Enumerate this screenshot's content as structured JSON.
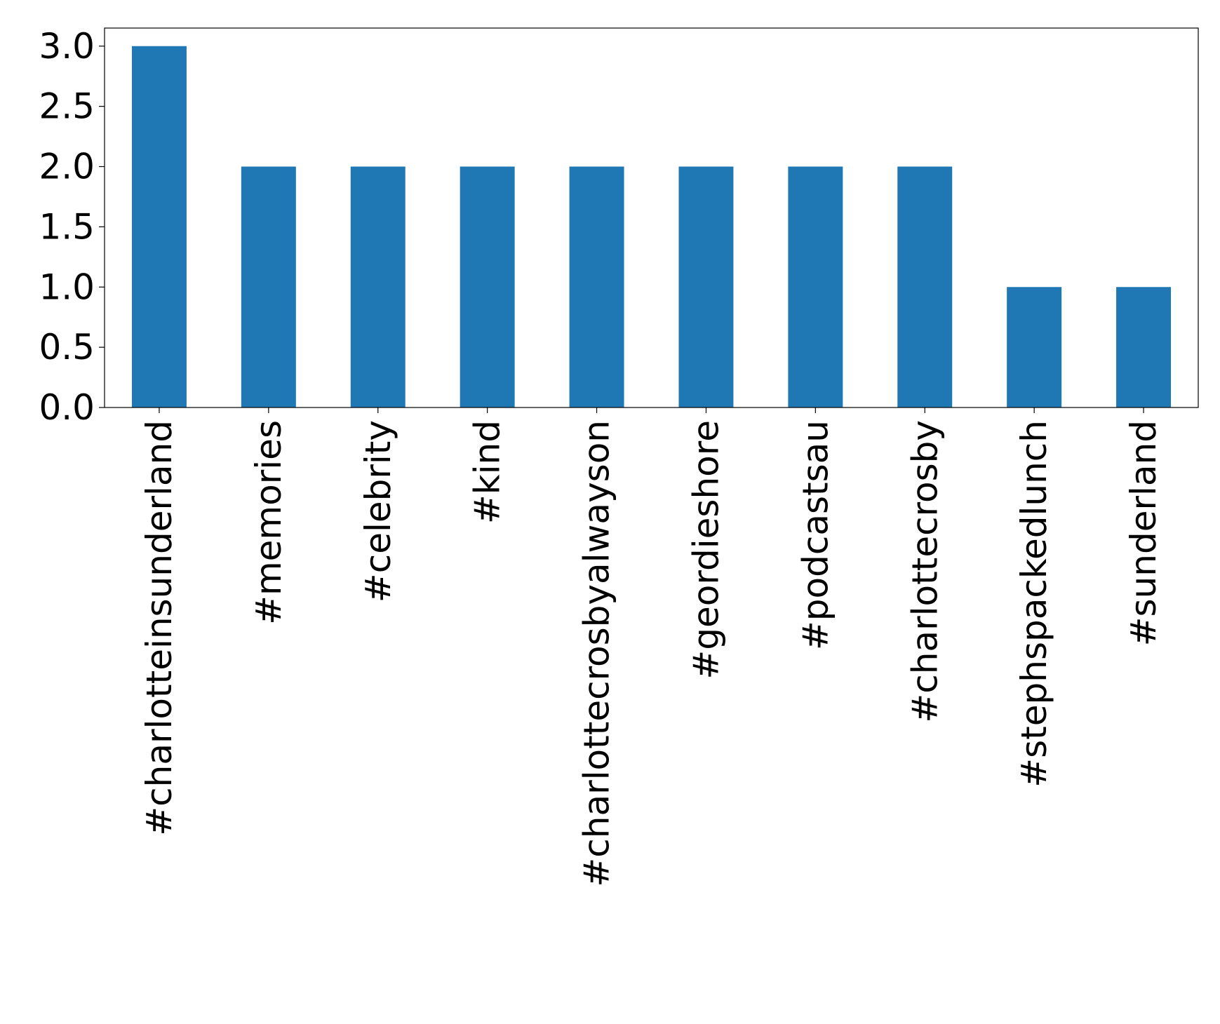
{
  "chart_data": {
    "type": "bar",
    "categories": [
      "#charlotteinsunderland",
      "#memories",
      "#celebrity",
      "#kind",
      "#charlottecrosbyalwayson",
      "#geordieshore",
      "#podcastsau",
      "#charlottecrosby",
      "#stephspackedlunch",
      "#sunderland"
    ],
    "values": [
      3,
      2,
      2,
      2,
      2,
      2,
      2,
      2,
      1,
      1
    ],
    "color": "#1f77b4",
    "ylim": [
      0,
      3.15
    ],
    "yticks": [
      {
        "value": 0,
        "label": "0.0"
      },
      0.5,
      {
        "value": 1,
        "label": "1.0"
      },
      1.5,
      {
        "value": 2,
        "label": "2.0"
      },
      2.5,
      {
        "value": 3,
        "label": "3.0"
      }
    ],
    "grid": false
  }
}
